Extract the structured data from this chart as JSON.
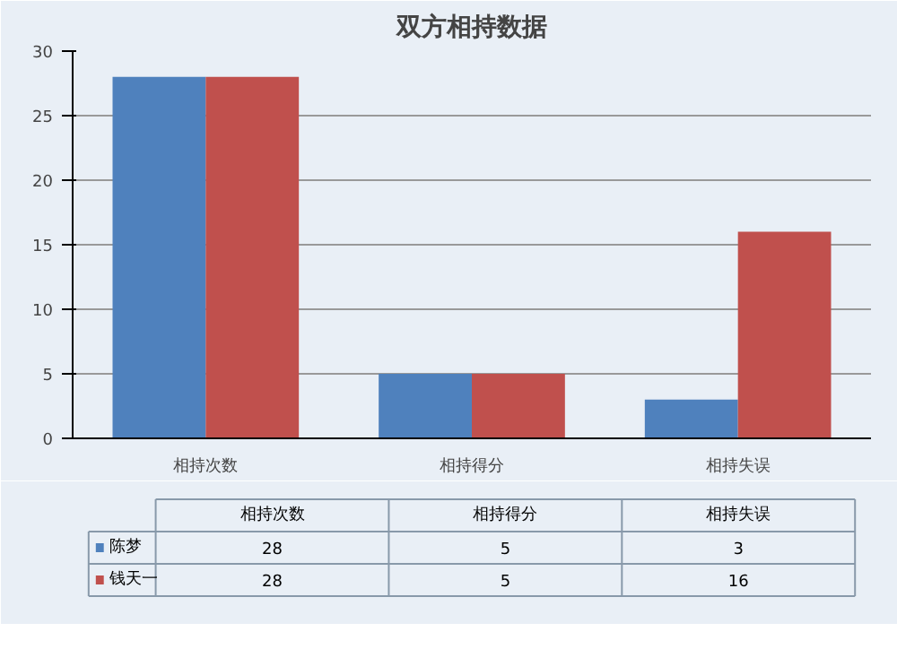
{
  "chart_data": {
    "type": "bar",
    "title": "双方相持数据",
    "categories": [
      "相持次数",
      "相持得分",
      "相持失误"
    ],
    "series": [
      {
        "name": "陈梦",
        "color": "#4f81bd",
        "values": [
          28,
          5,
          3
        ]
      },
      {
        "name": "钱天一",
        "color": "#c0504d",
        "values": [
          28,
          5,
          16
        ]
      }
    ],
    "ylim": [
      0,
      30
    ],
    "yticks": [
      0,
      5,
      10,
      15,
      20,
      25,
      30
    ],
    "grid": "y",
    "legend": "bottom",
    "data_labels": true
  }
}
